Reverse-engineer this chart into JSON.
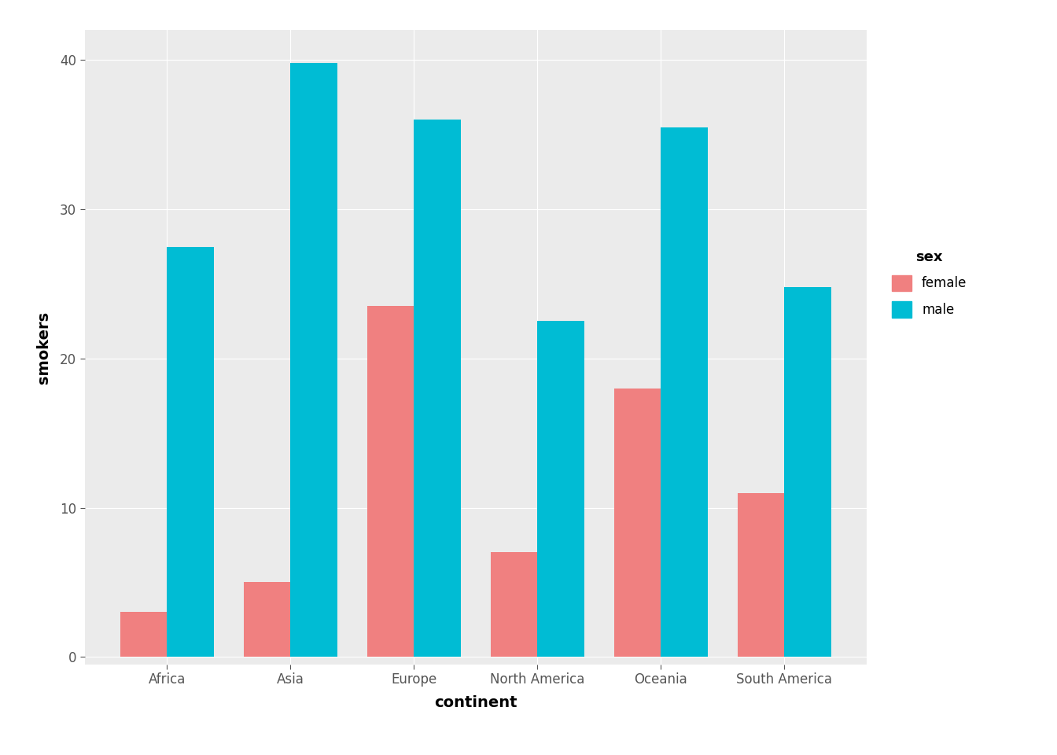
{
  "continents": [
    "Africa",
    "Asia",
    "Europe",
    "North America",
    "Oceania",
    "South America"
  ],
  "female_values": [
    3.0,
    5.0,
    23.5,
    7.0,
    18.0,
    11.0
  ],
  "male_values": [
    27.5,
    39.8,
    36.0,
    22.5,
    35.5,
    24.8
  ],
  "female_color": "#F08080",
  "male_color": "#00BCD4",
  "panel_bg": "#EBEBEB",
  "fig_bg": "#FFFFFF",
  "xlabel": "continent",
  "ylabel": "smokers",
  "legend_title": "sex",
  "legend_labels": [
    "female",
    "male"
  ],
  "ylim": [
    -0.5,
    42
  ],
  "yticks": [
    0,
    10,
    20,
    30,
    40
  ],
  "bar_width": 0.38,
  "tick_color": "#555555",
  "grid_color": "#FFFFFF",
  "label_fontsize": 14,
  "tick_fontsize": 12,
  "legend_title_fontsize": 13,
  "legend_fontsize": 12
}
